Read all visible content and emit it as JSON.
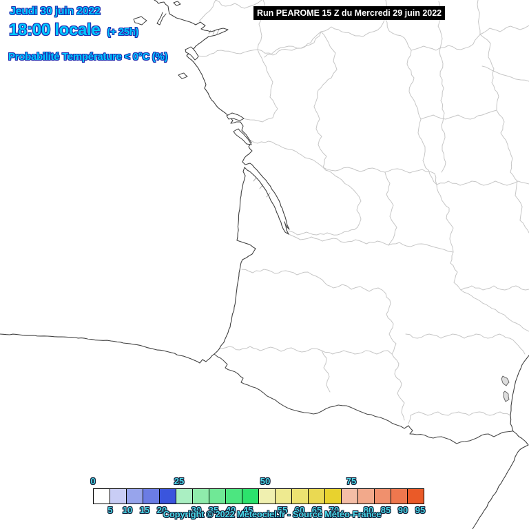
{
  "header": {
    "date": "Jeudi 30 juin 2022",
    "time": "18:00 locale",
    "offset": "(+ 25h)",
    "subtitle": "Probabilité Température < 0°C (%)",
    "text_color": "#00c8ff"
  },
  "run_banner": {
    "text": "Run PEAROME 15 Z du Mercredi 29 juin 2022",
    "bg": "#000000",
    "color": "#ffffff"
  },
  "legend": {
    "scale_min": 0,
    "scale_max": 100,
    "step": 5,
    "cells": [
      "#ffffff",
      "#c9cdf5",
      "#97a4ec",
      "#6b7ce4",
      "#3a55dd",
      "#aaefc2",
      "#8fecab",
      "#70e896",
      "#4ce680",
      "#2ce26c",
      "#f0f0b0",
      "#eeea90",
      "#ece271",
      "#ead952",
      "#e8d22e",
      "#f4bda6",
      "#f2a98b",
      "#f0906d",
      "#ee774e",
      "#ea5a28"
    ],
    "top_labels": [
      {
        "label": "0",
        "idx": 0
      },
      {
        "label": "25",
        "idx": 5
      },
      {
        "label": "50",
        "idx": 10
      },
      {
        "label": "75",
        "idx": 15
      }
    ],
    "bottom_labels": [
      {
        "label": "5",
        "idx": 1
      },
      {
        "label": "10",
        "idx": 2
      },
      {
        "label": "15",
        "idx": 3
      },
      {
        "label": "20",
        "idx": 4
      },
      {
        "label": "30",
        "idx": 6
      },
      {
        "label": "35",
        "idx": 7
      },
      {
        "label": "40",
        "idx": 8
      },
      {
        "label": "45",
        "idx": 9
      },
      {
        "label": "55",
        "idx": 11
      },
      {
        "label": "60",
        "idx": 12
      },
      {
        "label": "65",
        "idx": 13
      },
      {
        "label": "70",
        "idx": 14
      },
      {
        "label": "80",
        "idx": 16
      },
      {
        "label": "85",
        "idx": 17
      },
      {
        "label": "90",
        "idx": 18
      },
      {
        "label": "95",
        "idx": 19
      }
    ],
    "label_color": "#49d7e8"
  },
  "footer": {
    "copyright": "Copyright © 2022 Meteociel.fr - Source Météo-France"
  },
  "map": {
    "coast_color": "#3f3f3f",
    "country_border_color": "#4a4a4a",
    "department_border_color": "#c6c6c6",
    "sea_color": "#ffffff",
    "lagoon_fill": "#dddddd"
  }
}
